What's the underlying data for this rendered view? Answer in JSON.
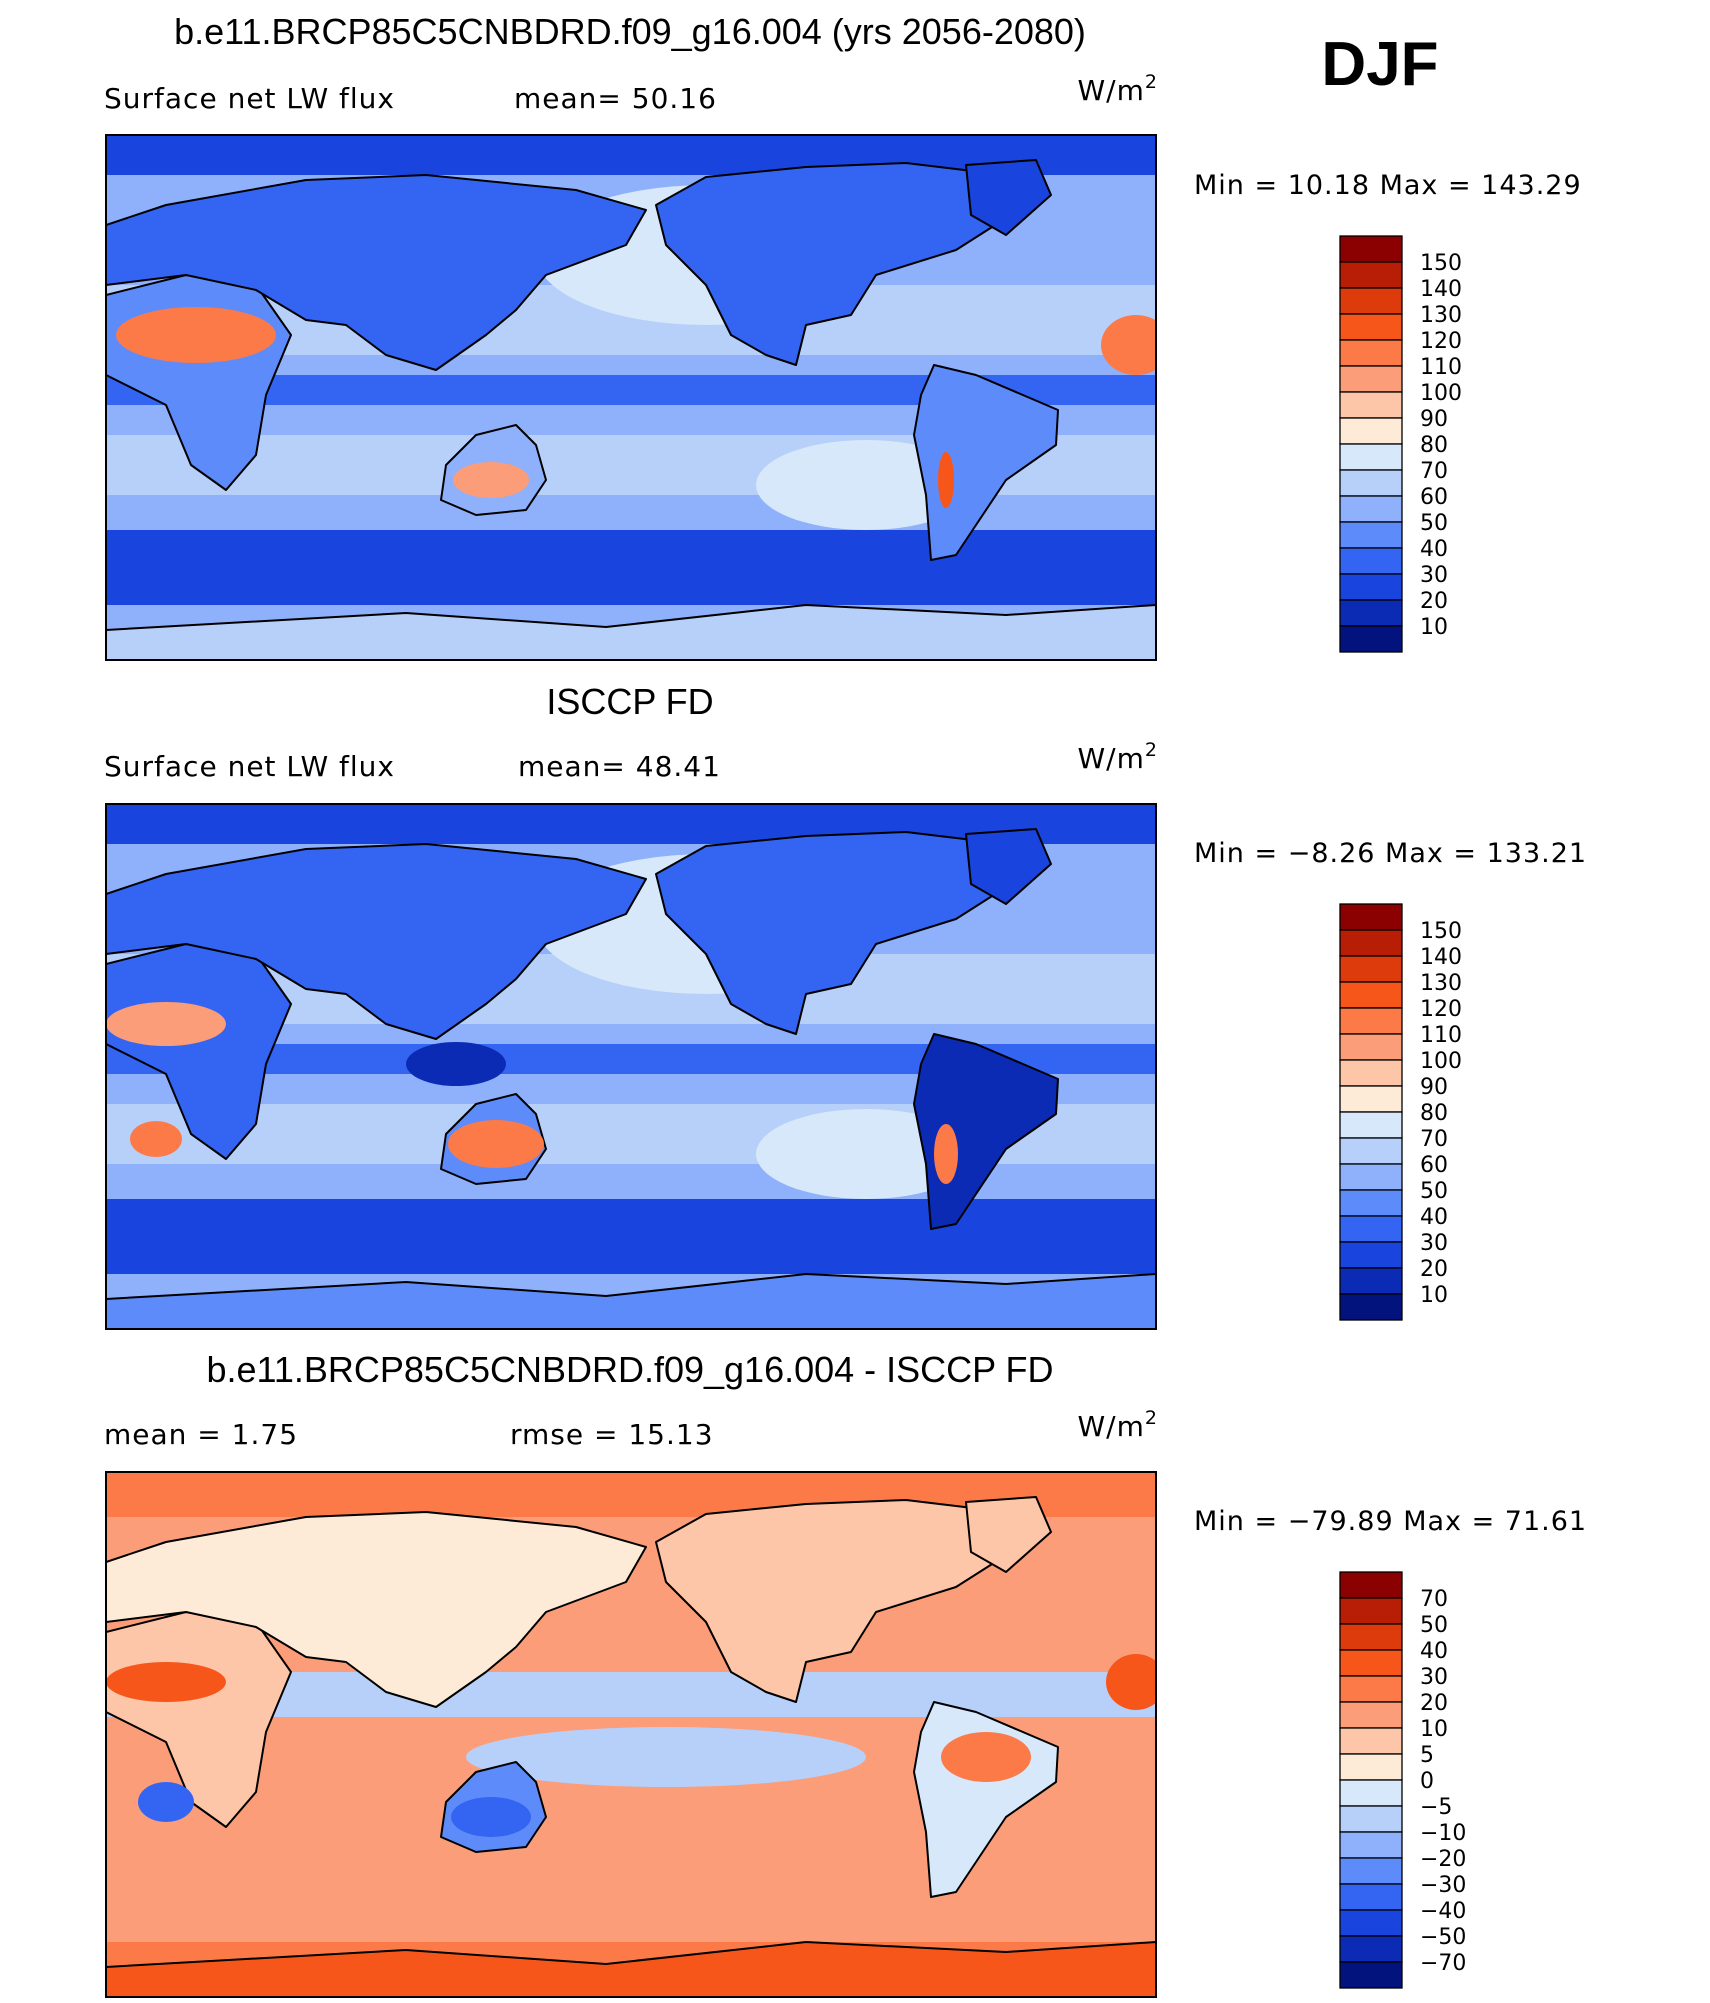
{
  "season": "DJF",
  "units_base": "W/m",
  "units_exp": "2",
  "chart_data": [
    {
      "type": "heatmap",
      "title": "b.e11.BRCP85C5CNBDRD.f09_g16.004 (yrs 2056-2080)",
      "left_label": "Surface net LW flux",
      "stat1": "mean=  50.16",
      "stat2": "",
      "minmax": "Min =   10.18  Max  =  143.29",
      "levels": [
        "150",
        "140",
        "130",
        "120",
        "110",
        "100",
        "90",
        "80",
        "70",
        "60",
        "50",
        "40",
        "30",
        "20",
        "10"
      ],
      "colors": [
        "#8b0000",
        "#b81d06",
        "#de3b0c",
        "#f7561b",
        "#fc7a48",
        "#fb9d78",
        "#fec6a8",
        "#fdebd8",
        "#d6e8fa",
        "#b7d0fa",
        "#8fb0fa",
        "#5e8bfa",
        "#3364f2",
        "#1a44de",
        "#0b2bb5",
        "#02137e"
      ]
    },
    {
      "type": "heatmap",
      "title": "ISCCP FD",
      "left_label": "Surface net LW flux",
      "stat1": "mean=  48.41",
      "stat2": "",
      "minmax": "Min =   −8.26  Max  =  133.21",
      "levels": [
        "150",
        "140",
        "130",
        "120",
        "110",
        "100",
        "90",
        "80",
        "70",
        "60",
        "50",
        "40",
        "30",
        "20",
        "10"
      ],
      "colors": [
        "#8b0000",
        "#b81d06",
        "#de3b0c",
        "#f7561b",
        "#fc7a48",
        "#fb9d78",
        "#fec6a8",
        "#fdebd8",
        "#d6e8fa",
        "#b7d0fa",
        "#8fb0fa",
        "#5e8bfa",
        "#3364f2",
        "#1a44de",
        "#0b2bb5",
        "#02137e"
      ]
    },
    {
      "type": "heatmap",
      "title": "b.e11.BRCP85C5CNBDRD.f09_g16.004 - ISCCP FD",
      "left_label": "mean =     1.75",
      "stat1": "",
      "stat2": "rmse =   15.13",
      "minmax": "Min  = −79.89  Max  =     71.61",
      "levels": [
        "70",
        "50",
        "40",
        "30",
        "20",
        "10",
        "5",
        "0",
        "−5",
        "−10",
        "−20",
        "−30",
        "−40",
        "−50",
        "−70"
      ],
      "colors": [
        "#8b0000",
        "#b81d06",
        "#de3b0c",
        "#f7561b",
        "#fc7a48",
        "#fb9d78",
        "#fec6a8",
        "#fdebd8",
        "#d6e8fa",
        "#b7d0fa",
        "#8fb0fa",
        "#5e8bfa",
        "#3364f2",
        "#1a44de",
        "#0b2bb5",
        "#02137e"
      ]
    }
  ]
}
